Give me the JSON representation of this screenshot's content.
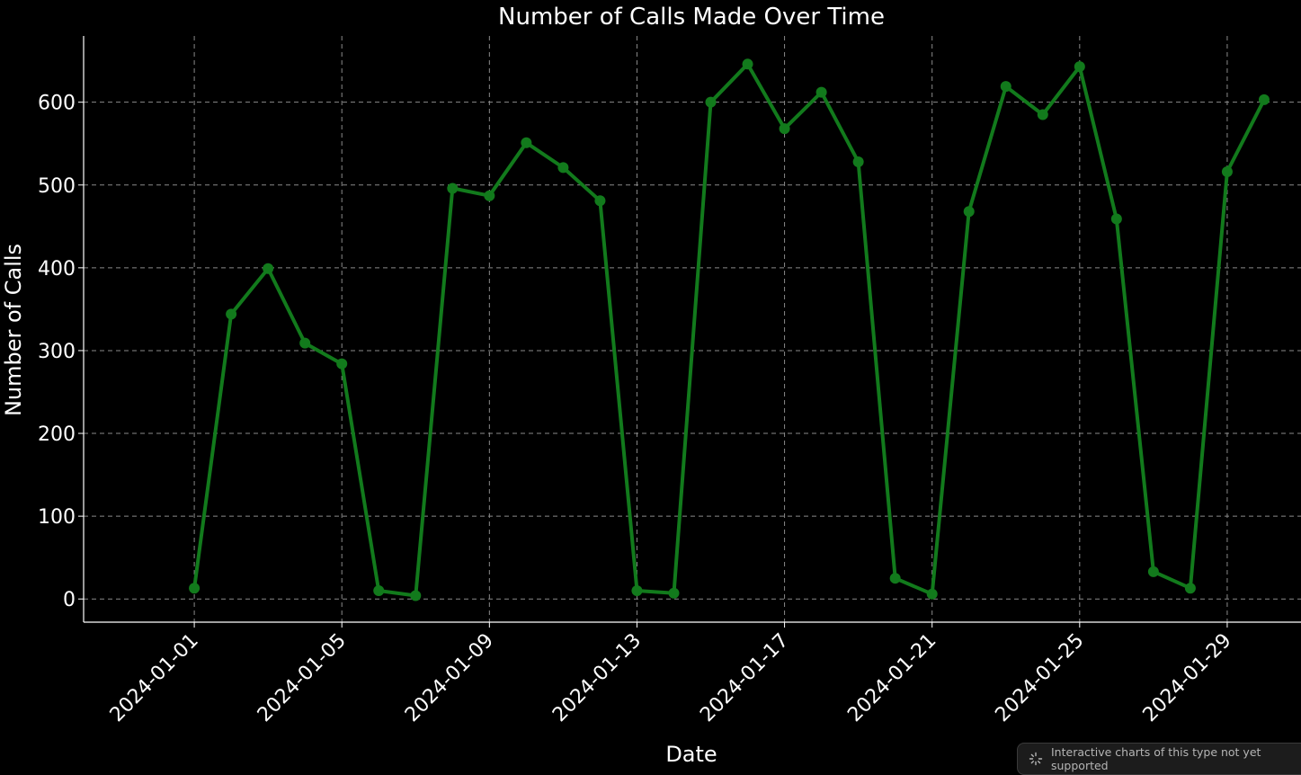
{
  "chart_data": {
    "type": "line",
    "title": "Number of Calls Made Over Time",
    "xlabel": "Date",
    "ylabel": "Number of Calls",
    "x": [
      "2024-01-01",
      "2024-01-02",
      "2024-01-03",
      "2024-01-04",
      "2024-01-05",
      "2024-01-06",
      "2024-01-07",
      "2024-01-08",
      "2024-01-09",
      "2024-01-10",
      "2024-01-11",
      "2024-01-12",
      "2024-01-13",
      "2024-01-14",
      "2024-01-15",
      "2024-01-16",
      "2024-01-17",
      "2024-01-18",
      "2024-01-19",
      "2024-01-20",
      "2024-01-21",
      "2024-01-22",
      "2024-01-23",
      "2024-01-24",
      "2024-01-25",
      "2024-01-26",
      "2024-01-27",
      "2024-01-28",
      "2024-01-29",
      "2024-01-30"
    ],
    "series": [
      {
        "values": [
          13,
          344,
          399,
          309,
          284,
          10,
          4,
          496,
          487,
          551,
          521,
          481,
          10,
          7,
          600,
          646,
          568,
          612,
          528,
          25,
          6,
          468,
          619,
          585,
          643,
          459,
          33,
          13,
          516,
          603
        ],
        "color": "#127a1c",
        "marker": "circle"
      }
    ],
    "x_ticks": [
      "2024-01-01",
      "2024-01-05",
      "2024-01-09",
      "2024-01-13",
      "2024-01-17",
      "2024-01-21",
      "2024-01-25",
      "2024-01-29"
    ],
    "y_ticks": [
      0,
      100,
      200,
      300,
      400,
      500,
      600
    ],
    "ylim": [
      -28,
      680
    ],
    "xlim": [
      "2023-12-29",
      "2024-01-31"
    ],
    "grid": true,
    "grid_style": "dashed",
    "background": "#000000",
    "text_color": "#ffffff"
  },
  "notice": {
    "text": "Interactive charts of this type not yet supported",
    "icon": "sparkle-icon"
  }
}
